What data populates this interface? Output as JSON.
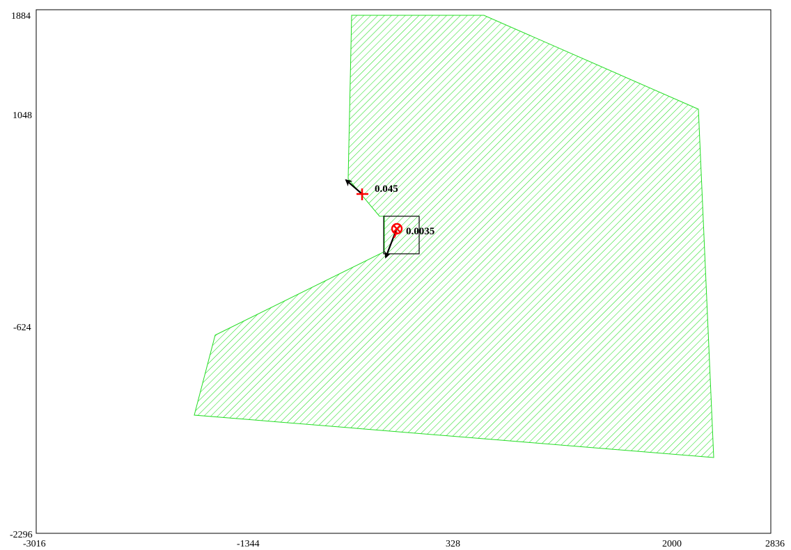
{
  "axes": {
    "x_ticks": [
      "-3016",
      "-1344",
      "328",
      "2000",
      "2836"
    ],
    "y_ticks": [
      "1884",
      "1048",
      "-624",
      "-2296"
    ],
    "xlim": [
      -3016,
      2836
    ],
    "ylim": [
      -2296,
      1884
    ]
  },
  "region": {
    "fill_style": "diagonal-hatch",
    "color": "#00dd00"
  },
  "points": [
    {
      "label": "0.045",
      "marker": "plus",
      "color": "#ff0000"
    },
    {
      "label": "0.0035",
      "marker": "circle-x",
      "color": "#ff0000"
    }
  ],
  "colors": {
    "frame": "#000000",
    "marker": "#ff0000",
    "arrow": "#000000"
  }
}
